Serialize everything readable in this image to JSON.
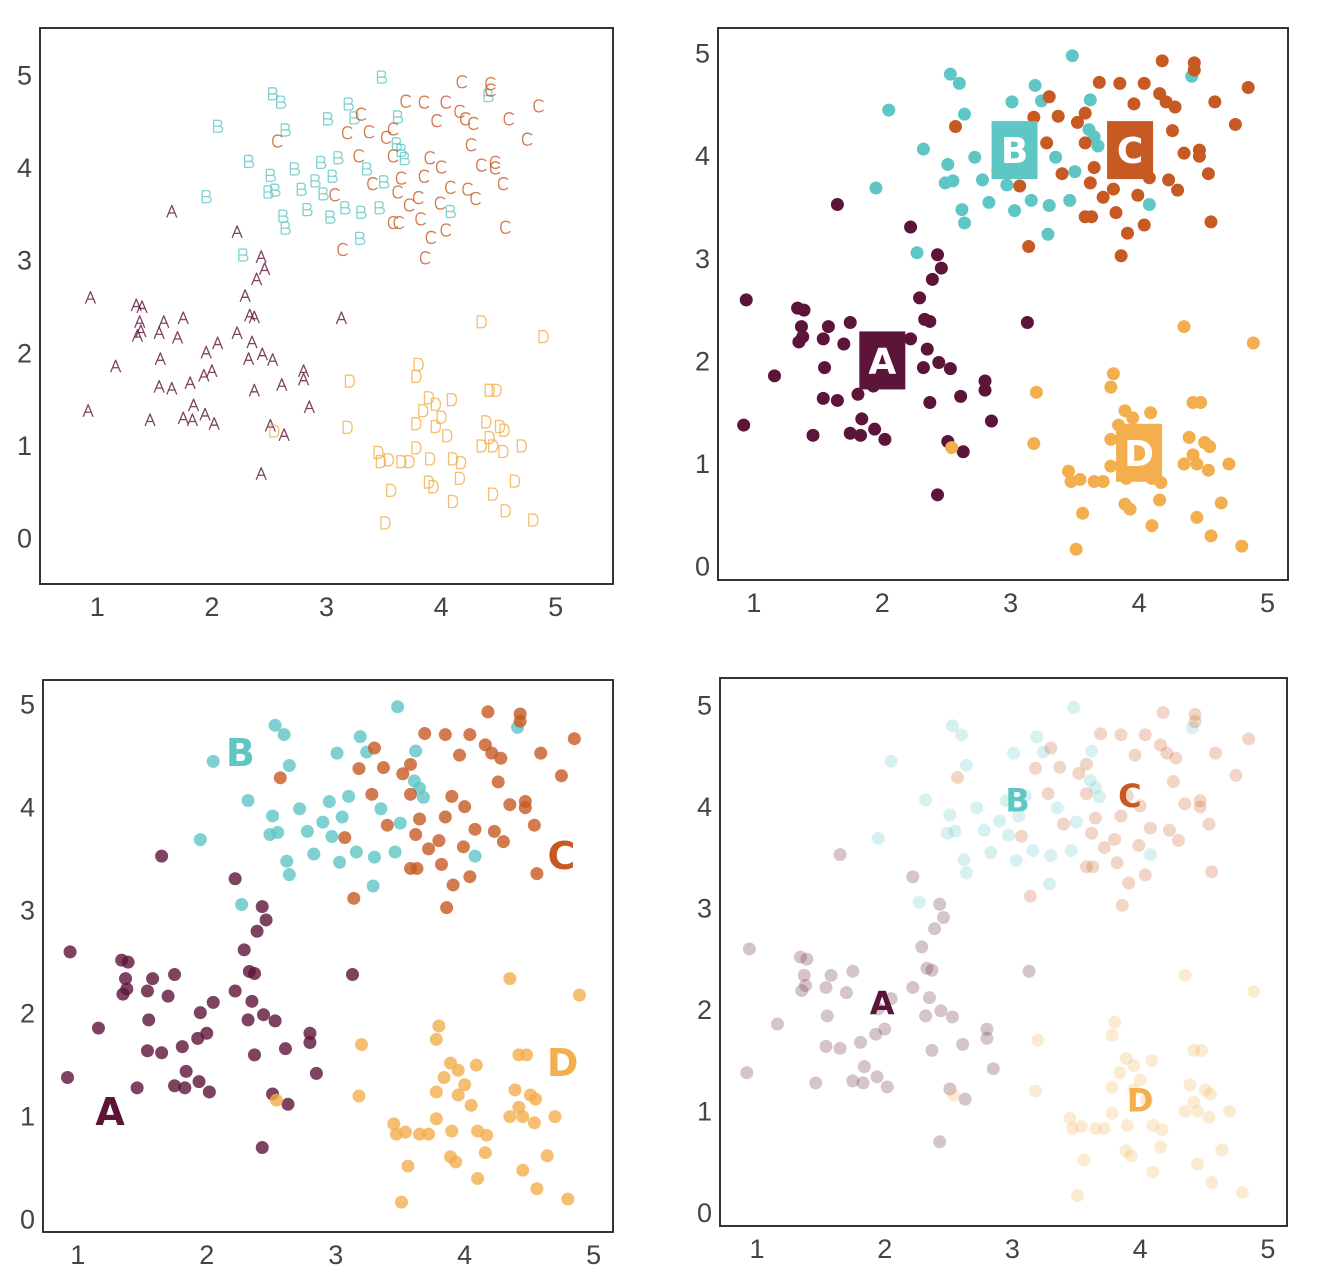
{
  "chart_data": {
    "type": "scatter",
    "series": [
      {
        "name": "A",
        "color": "#5c1439",
        "points": [
          [
            1.65,
            3.52
          ],
          [
            2.22,
            3.3
          ],
          [
            2.43,
            3.03
          ],
          [
            2.46,
            2.9
          ],
          [
            2.39,
            2.79
          ],
          [
            2.29,
            2.61
          ],
          [
            0.94,
            2.59
          ],
          [
            1.34,
            2.51
          ],
          [
            1.39,
            2.49
          ],
          [
            2.33,
            2.4
          ],
          [
            2.37,
            2.38
          ],
          [
            1.75,
            2.37
          ],
          [
            1.58,
            2.33
          ],
          [
            1.37,
            2.33
          ],
          [
            3.13,
            2.37
          ],
          [
            1.38,
            2.23
          ],
          [
            1.54,
            2.21
          ],
          [
            1.35,
            2.18
          ],
          [
            1.7,
            2.16
          ],
          [
            2.22,
            2.21
          ],
          [
            2.35,
            2.11
          ],
          [
            1.95,
            2.0
          ],
          [
            2.05,
            2.1
          ],
          [
            2.0,
            1.8
          ],
          [
            1.55,
            1.93
          ],
          [
            1.16,
            1.85
          ],
          [
            2.32,
            1.93
          ],
          [
            2.44,
            1.98
          ],
          [
            2.53,
            1.92
          ],
          [
            2.8,
            1.8
          ],
          [
            2.8,
            1.71
          ],
          [
            1.54,
            1.63
          ],
          [
            1.65,
            1.61
          ],
          [
            1.81,
            1.67
          ],
          [
            1.93,
            1.75
          ],
          [
            2.37,
            1.59
          ],
          [
            2.61,
            1.65
          ],
          [
            2.85,
            1.41
          ],
          [
            0.92,
            1.37
          ],
          [
            1.46,
            1.27
          ],
          [
            1.84,
            1.43
          ],
          [
            1.94,
            1.33
          ],
          [
            1.75,
            1.29
          ],
          [
            1.83,
            1.27
          ],
          [
            2.02,
            1.23
          ],
          [
            2.51,
            1.21
          ],
          [
            2.63,
            1.11
          ],
          [
            2.43,
            0.69
          ]
        ]
      },
      {
        "name": "B",
        "color": "#5ec6c4",
        "points": [
          [
            3.48,
            4.97
          ],
          [
            2.53,
            4.79
          ],
          [
            2.6,
            4.7
          ],
          [
            2.05,
            4.44
          ],
          [
            2.64,
            4.4
          ],
          [
            3.19,
            4.68
          ],
          [
            3.24,
            4.53
          ],
          [
            3.01,
            4.52
          ],
          [
            3.62,
            4.54
          ],
          [
            3.61,
            4.25
          ],
          [
            3.65,
            4.18
          ],
          [
            3.68,
            4.09
          ],
          [
            2.32,
            4.06
          ],
          [
            2.72,
            3.98
          ],
          [
            2.51,
            3.91
          ],
          [
            3.35,
            3.98
          ],
          [
            3.5,
            3.84
          ],
          [
            1.95,
            3.68
          ],
          [
            2.49,
            3.73
          ],
          [
            2.55,
            3.75
          ],
          [
            2.78,
            3.76
          ],
          [
            2.97,
            3.71
          ],
          [
            2.83,
            3.54
          ],
          [
            3.03,
            3.46
          ],
          [
            3.16,
            3.56
          ],
          [
            3.3,
            3.51
          ],
          [
            3.46,
            3.56
          ],
          [
            2.62,
            3.47
          ],
          [
            2.64,
            3.34
          ],
          [
            3.29,
            3.23
          ],
          [
            2.27,
            3.05
          ],
          [
            4.08,
            3.52
          ],
          [
            4.41,
            4.77
          ],
          [
            2.95,
            4.05
          ],
          [
            3.05,
            3.9
          ],
          [
            2.9,
            3.85
          ],
          [
            3.1,
            4.1
          ]
        ]
      },
      {
        "name": "C",
        "color": "#c65a22",
        "points": [
          [
            4.18,
            4.92
          ],
          [
            4.43,
            4.9
          ],
          [
            4.43,
            4.83
          ],
          [
            3.69,
            4.71
          ],
          [
            3.85,
            4.7
          ],
          [
            4.04,
            4.7
          ],
          [
            3.3,
            4.57
          ],
          [
            4.16,
            4.6
          ],
          [
            4.21,
            4.52
          ],
          [
            4.28,
            4.47
          ],
          [
            3.96,
            4.5
          ],
          [
            4.85,
            4.66
          ],
          [
            4.59,
            4.52
          ],
          [
            4.75,
            4.3
          ],
          [
            2.57,
            4.28
          ],
          [
            3.18,
            4.37
          ],
          [
            3.37,
            4.38
          ],
          [
            3.58,
            4.41
          ],
          [
            3.52,
            4.32
          ],
          [
            4.26,
            4.24
          ],
          [
            3.28,
            4.12
          ],
          [
            3.58,
            4.12
          ],
          [
            4.35,
            4.02
          ],
          [
            4.47,
            4.05
          ],
          [
            4.47,
            3.99
          ],
          [
            3.4,
            3.82
          ],
          [
            3.65,
            3.88
          ],
          [
            4.54,
            3.82
          ],
          [
            3.07,
            3.7
          ],
          [
            3.62,
            3.73
          ],
          [
            4.08,
            3.78
          ],
          [
            4.23,
            3.76
          ],
          [
            4.3,
            3.66
          ],
          [
            3.8,
            3.67
          ],
          [
            3.72,
            3.59
          ],
          [
            3.99,
            3.61
          ],
          [
            3.58,
            3.4
          ],
          [
            3.63,
            3.4
          ],
          [
            3.82,
            3.44
          ],
          [
            4.04,
            3.32
          ],
          [
            3.91,
            3.24
          ],
          [
            4.56,
            3.35
          ],
          [
            3.14,
            3.11
          ],
          [
            3.86,
            3.02
          ],
          [
            3.9,
            4.1
          ],
          [
            4.0,
            4.0
          ],
          [
            3.85,
            3.9
          ]
        ]
      },
      {
        "name": "D",
        "color": "#f3ae4e",
        "points": [
          [
            3.2,
            1.69
          ],
          [
            3.18,
            1.19
          ],
          [
            2.54,
            1.15
          ],
          [
            4.35,
            2.33
          ],
          [
            4.89,
            2.17
          ],
          [
            3.8,
            1.87
          ],
          [
            3.78,
            1.74
          ],
          [
            4.42,
            1.59
          ],
          [
            4.48,
            1.59
          ],
          [
            3.89,
            1.51
          ],
          [
            4.09,
            1.49
          ],
          [
            3.95,
            1.44
          ],
          [
            3.84,
            1.37
          ],
          [
            3.78,
            1.23
          ],
          [
            4.39,
            1.25
          ],
          [
            4.51,
            1.2
          ],
          [
            4.55,
            1.16
          ],
          [
            4.42,
            1.08
          ],
          [
            4.35,
            0.99
          ],
          [
            4.45,
            0.99
          ],
          [
            4.7,
            0.99
          ],
          [
            4.54,
            0.93
          ],
          [
            3.78,
            0.97
          ],
          [
            3.45,
            0.92
          ],
          [
            3.47,
            0.82
          ],
          [
            3.54,
            0.84
          ],
          [
            3.65,
            0.82
          ],
          [
            3.72,
            0.82
          ],
          [
            4.17,
            0.81
          ],
          [
            4.16,
            0.64
          ],
          [
            4.64,
            0.61
          ],
          [
            3.56,
            0.51
          ],
          [
            3.89,
            0.6
          ],
          [
            3.93,
            0.55
          ],
          [
            4.45,
            0.47
          ],
          [
            4.1,
            0.39
          ],
          [
            4.56,
            0.29
          ],
          [
            4.8,
            0.19
          ],
          [
            3.51,
            0.16
          ],
          [
            3.95,
            1.2
          ],
          [
            4.05,
            1.1
          ],
          [
            4.1,
            0.85
          ],
          [
            3.9,
            0.85
          ],
          [
            4.0,
            1.3
          ]
        ]
      }
    ],
    "panels": [
      {
        "marker": "text",
        "alpha": 0.8,
        "xlim": [
          0.5,
          5.5
        ],
        "ylim": [
          -0.5,
          5.5
        ],
        "xticks": [
          "1",
          "2",
          "3",
          "4",
          "5"
        ],
        "yticks": [
          "0",
          "1",
          "2",
          "3",
          "4",
          "5"
        ],
        "grid": false,
        "labels": []
      },
      {
        "marker": "circle",
        "alpha": 1.0,
        "xlim": [
          0.72,
          5.16
        ],
        "ylim": [
          -0.14,
          5.24
        ],
        "xticks": [
          "1",
          "2",
          "3",
          "4",
          "5"
        ],
        "yticks": [
          "0",
          "1",
          "2",
          "3",
          "4",
          "5"
        ],
        "grid": false,
        "label_style": "boxed",
        "labels": [
          {
            "text": "A",
            "x": 2.0,
            "y": 2.0
          },
          {
            "text": "B",
            "x": 3.03,
            "y": 4.05
          },
          {
            "text": "C",
            "x": 3.93,
            "y": 4.05
          },
          {
            "text": "D",
            "x": 4.0,
            "y": 1.1
          }
        ]
      },
      {
        "marker": "circle",
        "alpha": 0.8,
        "xlim": [
          0.73,
          5.15
        ],
        "ylim": [
          -0.13,
          5.23
        ],
        "xticks": [
          "1",
          "2",
          "3",
          "4",
          "5"
        ],
        "yticks": [
          "0",
          "1",
          "2",
          "3",
          "4",
          "5"
        ],
        "grid": false,
        "label_style": "text",
        "labels": [
          {
            "text": "A",
            "x": 1.25,
            "y": 1.04
          },
          {
            "text": "B",
            "x": 2.26,
            "y": 4.53
          },
          {
            "text": "C",
            "x": 4.75,
            "y": 3.53
          },
          {
            "text": "D",
            "x": 4.76,
            "y": 1.52
          }
        ]
      },
      {
        "marker": "circle",
        "alpha": 0.25,
        "xlim": [
          0.71,
          5.15
        ],
        "ylim": [
          -0.14,
          5.26
        ],
        "xticks": [
          "1",
          "2",
          "3",
          "4",
          "5"
        ],
        "yticks": [
          "0",
          "1",
          "2",
          "3",
          "4",
          "5"
        ],
        "grid": false,
        "label_style": "text",
        "labels": [
          {
            "text": "A",
            "x": 1.98,
            "y": 2.06
          },
          {
            "text": "B",
            "x": 3.04,
            "y": 4.06
          },
          {
            "text": "C",
            "x": 3.92,
            "y": 4.1
          },
          {
            "text": "D",
            "x": 4.0,
            "y": 1.1
          }
        ]
      }
    ]
  }
}
